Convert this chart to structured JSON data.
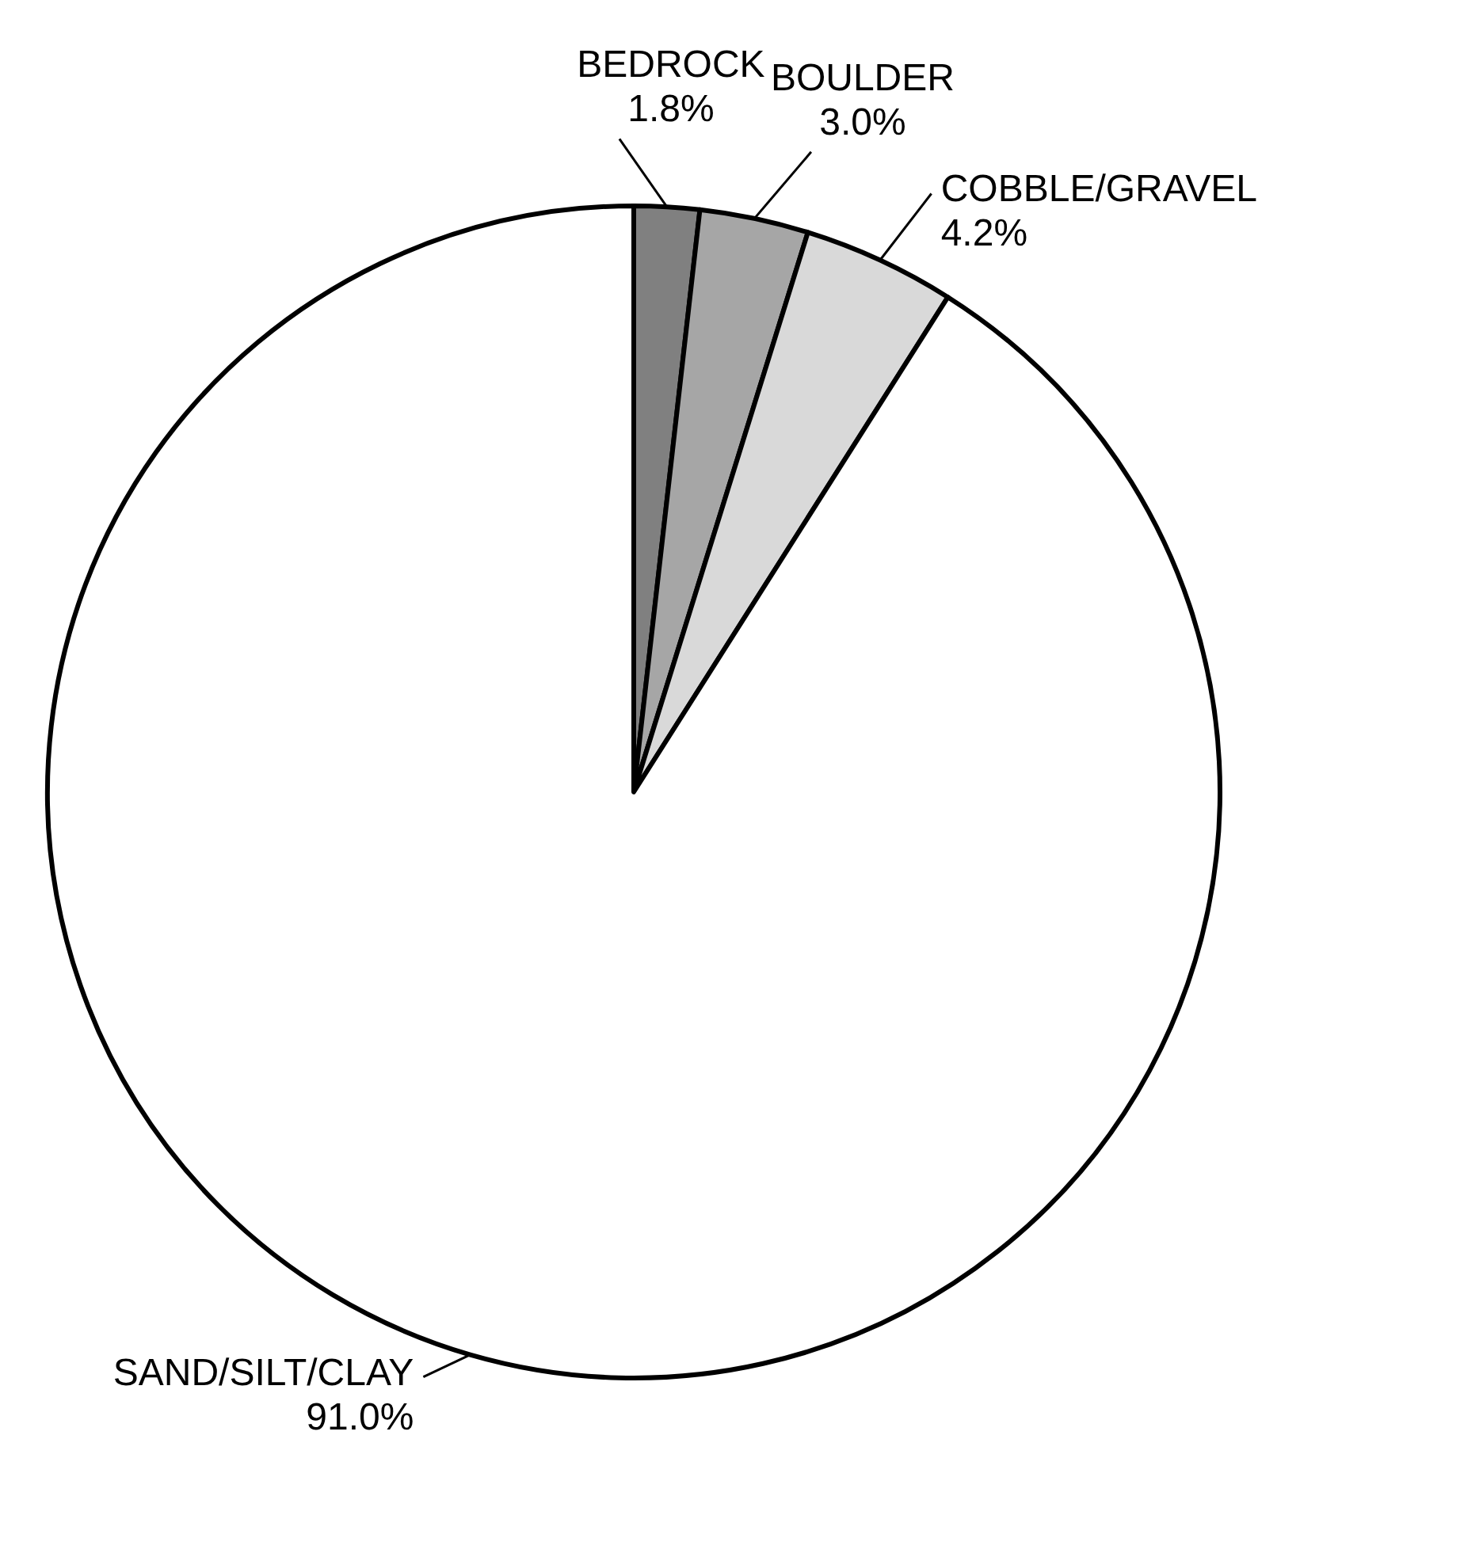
{
  "chart_data": {
    "type": "pie",
    "categories": [
      "BEDROCK",
      "BOULDER",
      "COBBLE/GRAVEL",
      "SAND/SILT/CLAY"
    ],
    "values": [
      1.8,
      3.0,
      4.2,
      91.0
    ],
    "colors": [
      "#808080",
      "#a6a6a6",
      "#d9d9d9",
      "#ffffff"
    ],
    "value_labels": [
      "1.8%",
      "3.0%",
      "4.2%",
      "91.0%"
    ]
  }
}
